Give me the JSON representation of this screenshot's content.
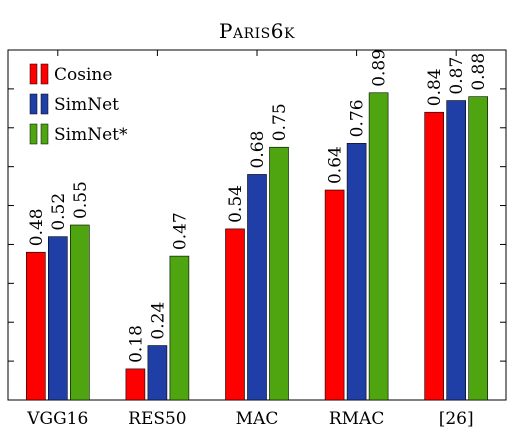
{
  "chart_data": {
    "type": "bar",
    "title": "Paris6k",
    "categories": [
      "VGG16",
      "RES50",
      "MAC",
      "RMAC",
      "[26]"
    ],
    "series": [
      {
        "name": "Cosine",
        "color": "#ff0000",
        "values": [
          0.48,
          0.18,
          0.54,
          0.64,
          0.84
        ]
      },
      {
        "name": "SimNet",
        "color": "#1f3fa6",
        "values": [
          0.52,
          0.24,
          0.68,
          0.76,
          0.87
        ]
      },
      {
        "name": "SimNet*",
        "color": "#4ea50f",
        "values": [
          0.55,
          0.47,
          0.75,
          0.89,
          0.88
        ]
      }
    ],
    "xlabel": "",
    "ylabel": "",
    "ylim": [
      0.1,
      1.0
    ],
    "legend_position": "top-left",
    "grid": false
  }
}
